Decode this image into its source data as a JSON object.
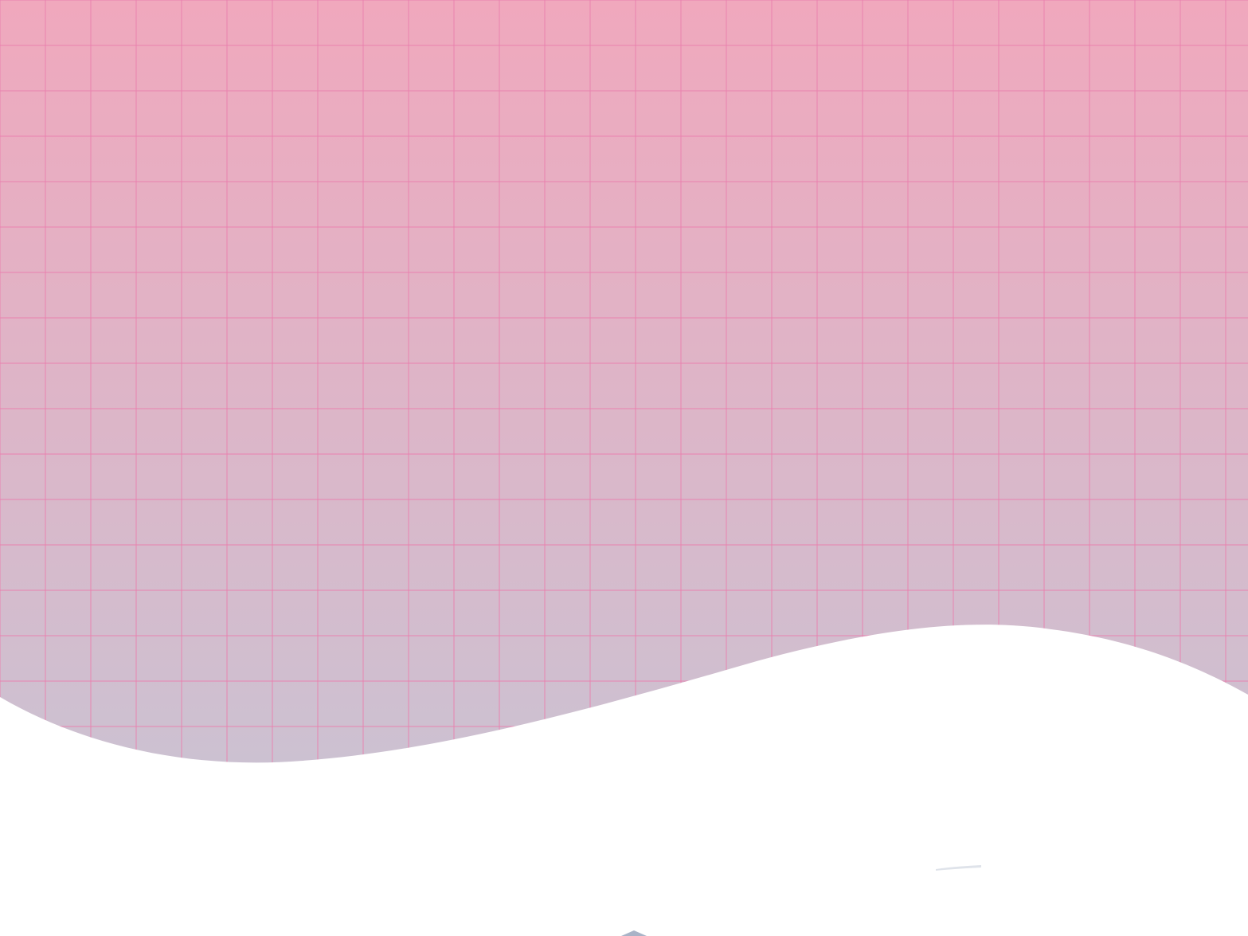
{
  "background": {
    "gradient_top_color": "#f0a8bd",
    "gradient_bottom_color": "#c4c7d6",
    "grid_line_color": "#ea7fae",
    "grid": "on",
    "wave_fill_color": "#ffffff",
    "wave_shadow_color": "#eef1f4",
    "bottom_accent_color": "#a9b3c7"
  }
}
